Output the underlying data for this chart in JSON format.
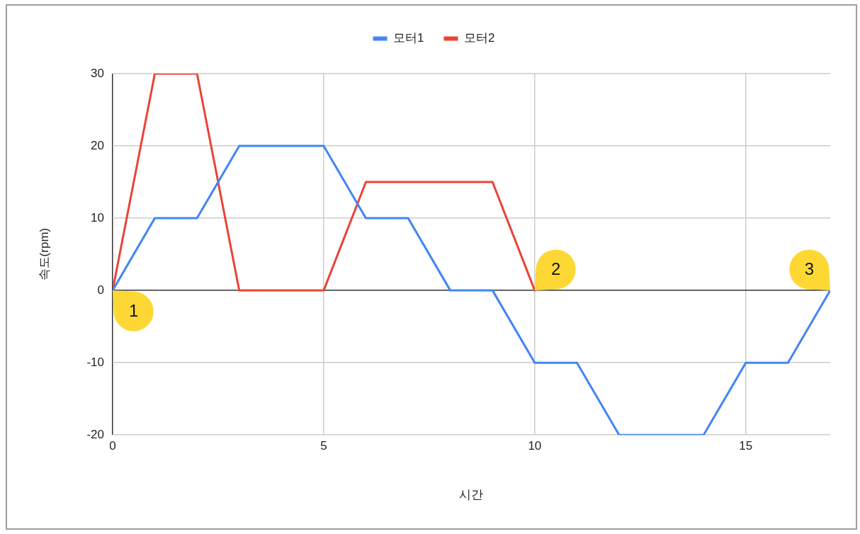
{
  "chart_data": {
    "type": "line",
    "xlabel": "시간",
    "ylabel": "속도(rpm)",
    "x": [
      0,
      1,
      2,
      3,
      4,
      5,
      6,
      7,
      8,
      9,
      10,
      11,
      12,
      13,
      14,
      15,
      16,
      17
    ],
    "series": [
      {
        "name": "모터1",
        "color": "#4285f4",
        "values": [
          0,
          10,
          10,
          20,
          20,
          20,
          10,
          10,
          0,
          0,
          -10,
          -10,
          -20,
          -20,
          -20,
          -10,
          -10,
          0
        ]
      },
      {
        "name": "모터2",
        "color": "#ea4335",
        "x": [
          0,
          1,
          2,
          3,
          4,
          5,
          6,
          7,
          8,
          9,
          10
        ],
        "values": [
          0,
          30,
          30,
          0,
          0,
          0,
          15,
          15,
          15,
          15,
          0
        ]
      }
    ],
    "xlim": [
      0,
      17
    ],
    "ylim": [
      -20,
      30
    ],
    "xticks": [
      0,
      5,
      10,
      15
    ],
    "yticks": [
      -20,
      -10,
      0,
      10,
      20,
      30
    ],
    "grid": true,
    "legend": "top",
    "marker": "none",
    "line_style": "solid",
    "annotations": [
      {
        "text": "1",
        "x": 0,
        "y": 0
      },
      {
        "text": "2",
        "x": 10,
        "y": 0
      },
      {
        "text": "3",
        "x": 17,
        "y": 0
      }
    ]
  }
}
